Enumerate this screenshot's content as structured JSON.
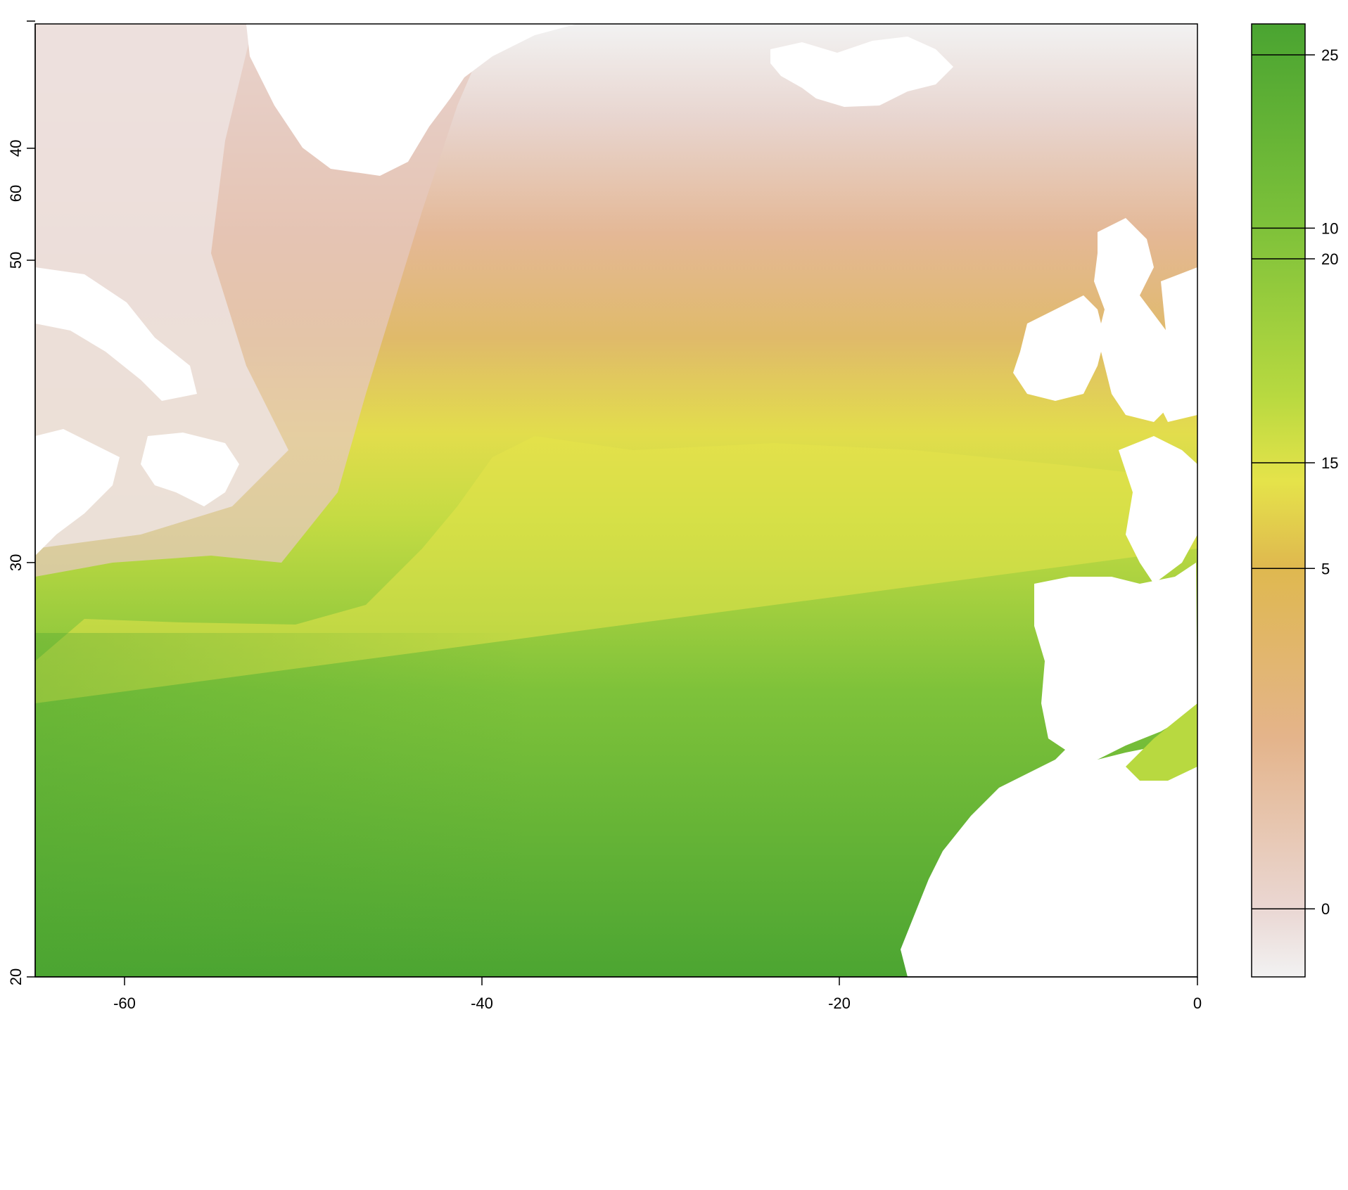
{
  "map": {
    "type": "raster",
    "variable_note": "",
    "x_axis": {
      "min": -65,
      "max": 0,
      "ticks": [
        -60,
        -40,
        -20,
        0
      ],
      "tick_labels": [
        "-60",
        "-40",
        "-20",
        "0"
      ]
    },
    "y_axis": {
      "min": 20,
      "max": 66,
      "ticks": [
        20,
        30,
        40,
        50,
        60
      ],
      "tick_labels": [
        "20",
        "30",
        "40",
        "50",
        "60"
      ]
    },
    "grid": false,
    "legend": {
      "type": "colorbar",
      "placement": "right",
      "min": -2,
      "max": 26,
      "ticks": [
        0,
        5,
        10,
        15,
        20,
        25
      ],
      "tick_labels": [
        "0",
        "5",
        "10",
        "15",
        "20",
        "25"
      ],
      "colors": {
        "-2": "#f2f2f2",
        "0": "#ead7d3",
        "5": "#e4b48b",
        "10": "#dfb84f",
        "12.5": "#e5e34a",
        "15": "#b8d940",
        "20": "#7dc13a",
        "26": "#4aa431"
      }
    },
    "description": ""
  }
}
